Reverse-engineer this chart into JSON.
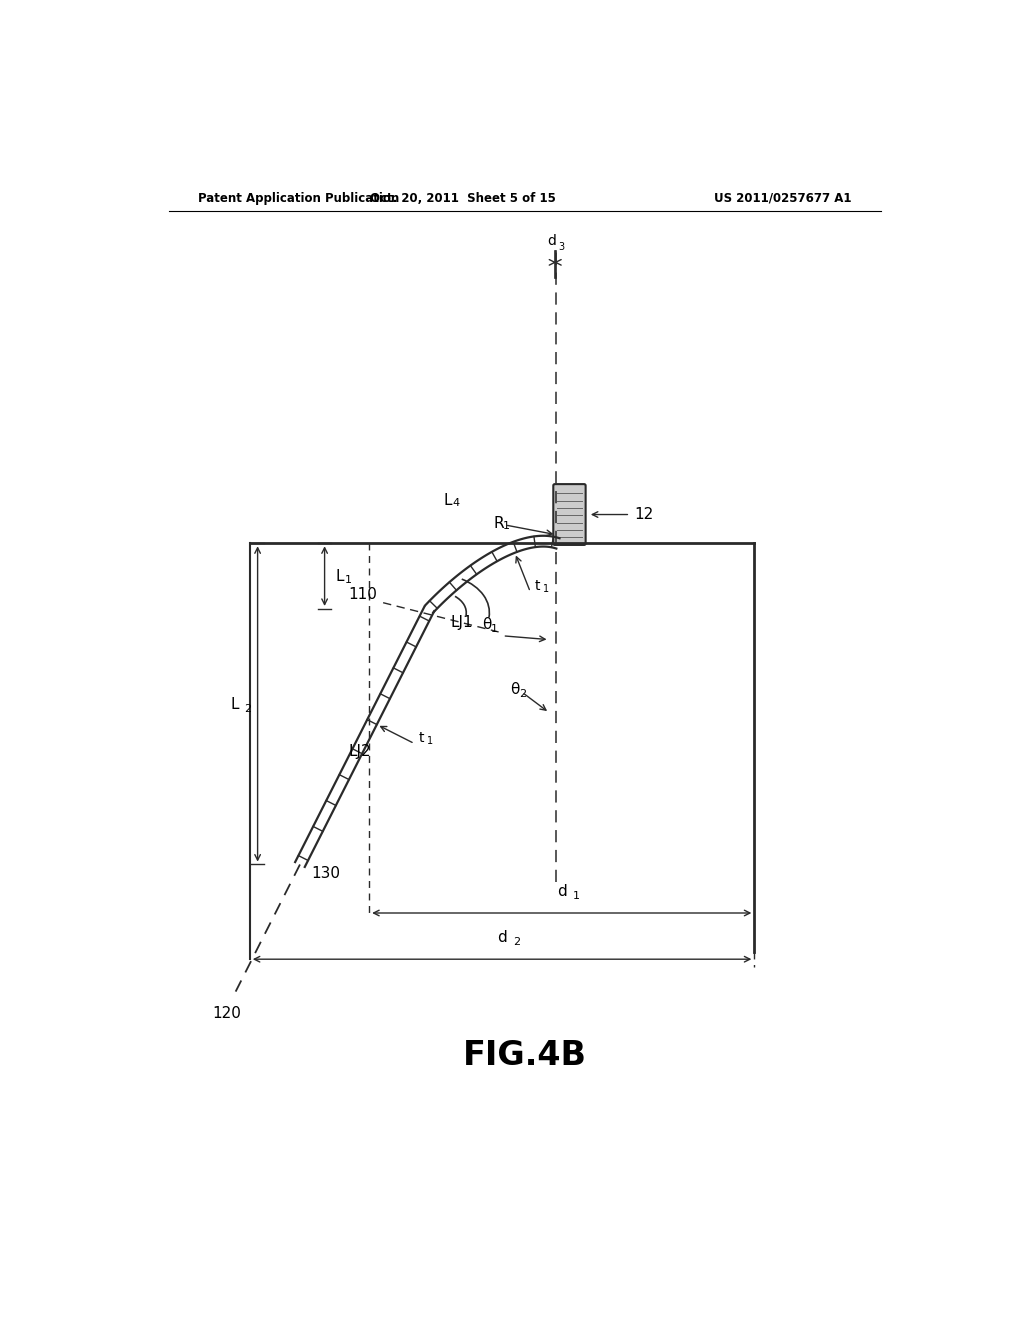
{
  "bg_color": "#ffffff",
  "header_left": "Patent Application Publication",
  "header_mid": "Oct. 20, 2011  Sheet 5 of 15",
  "header_right": "US 2011/0257677 A1",
  "figure_label": "FIG.4B",
  "lc": "#2a2a2a",
  "gray": "#888888",
  "lgray": "#cccccc"
}
